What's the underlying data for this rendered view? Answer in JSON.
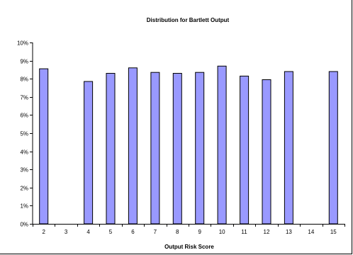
{
  "chart_data": {
    "type": "bar",
    "title": "Distribution for Bartlett Output",
    "xlabel": "Output Risk Score",
    "ylabel": "",
    "categories": [
      "2",
      "3",
      "4",
      "5",
      "6",
      "7",
      "8",
      "9",
      "10",
      "11",
      "12",
      "13",
      "14",
      "15"
    ],
    "values": [
      8.55,
      0,
      7.85,
      8.3,
      8.6,
      8.35,
      8.3,
      8.35,
      8.7,
      8.15,
      7.95,
      8.4,
      0,
      8.4
    ],
    "ylim": [
      0,
      10
    ],
    "yticks": [
      "0%",
      "1%",
      "2%",
      "3%",
      "4%",
      "5%",
      "6%",
      "7%",
      "8%",
      "9%",
      "10%"
    ],
    "grid": false,
    "legend": "none",
    "colors": {
      "bar_fill": "#9999ff",
      "bar_stroke": "#000000",
      "axis": "#000000"
    }
  }
}
